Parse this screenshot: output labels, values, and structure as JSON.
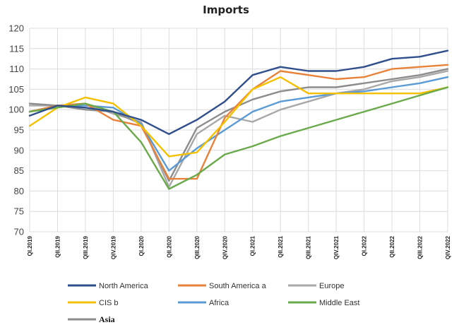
{
  "chart_data": {
    "type": "line",
    "title": "Imports",
    "xlabel": "",
    "ylabel": "",
    "ylim": [
      70,
      120
    ],
    "yticks": [
      70,
      75,
      80,
      85,
      90,
      95,
      100,
      105,
      110,
      115,
      120
    ],
    "grid": true,
    "categories": [
      "QI.2019",
      "QII.2019",
      "QIII.2019",
      "QIV.2019",
      "QI.2020",
      "QII.2020",
      "QIII.2020",
      "QIV.2020",
      "QI.2021",
      "QII.2021",
      "QIII.2021",
      "QIV.2021",
      "QI.2022",
      "QII.2022",
      "QIII.2022",
      "QIV.2022"
    ],
    "series": [
      {
        "name": "North America",
        "color": "#2f4f8c",
        "values": [
          98.5,
          101,
          100.5,
          99.5,
          97.5,
          94,
          97.5,
          102,
          108.5,
          110.5,
          109.5,
          109.5,
          110.5,
          112.5,
          113,
          114.5
        ]
      },
      {
        "name": "South America a",
        "color": "#e8823a",
        "values": [
          99.5,
          101,
          101.5,
          97.5,
          96,
          83,
          83,
          98,
          105,
          109.5,
          108.5,
          107.5,
          108,
          110,
          110.5,
          111
        ]
      },
      {
        "name": "Europe",
        "color": "#a8a8a8",
        "values": [
          101,
          101,
          101.5,
          99,
          97,
          81,
          94,
          98.5,
          97,
          100,
          102,
          104,
          105,
          107,
          108,
          109.5
        ]
      },
      {
        "name": "CIS b",
        "color": "#f5c000",
        "values": [
          96,
          100.5,
          103,
          101.5,
          96,
          88.5,
          89.5,
          97,
          105,
          108,
          104,
          104,
          104,
          104,
          104,
          105.5
        ]
      },
      {
        "name": "Africa",
        "color": "#5b9bd5",
        "values": [
          99.5,
          101,
          101,
          100.5,
          96.5,
          85,
          90.5,
          95,
          99.5,
          102,
          103,
          104,
          104.5,
          105.5,
          106.5,
          108
        ]
      },
      {
        "name": "Middle East",
        "color": "#6aaa4a",
        "values": [
          99.5,
          100.5,
          101.5,
          99.5,
          92,
          80.5,
          84,
          89,
          91,
          93.5,
          95.5,
          97.5,
          99.5,
          101.5,
          103.5,
          105.5
        ]
      },
      {
        "name": "Asia",
        "color": "#8c8c8c",
        "values": [
          101.5,
          101,
          100,
          99.5,
          96.5,
          82.5,
          95.5,
          99.5,
          102.5,
          104.5,
          105.5,
          105.5,
          106.5,
          107.5,
          108.5,
          110
        ]
      }
    ],
    "legend_position": "bottom"
  }
}
